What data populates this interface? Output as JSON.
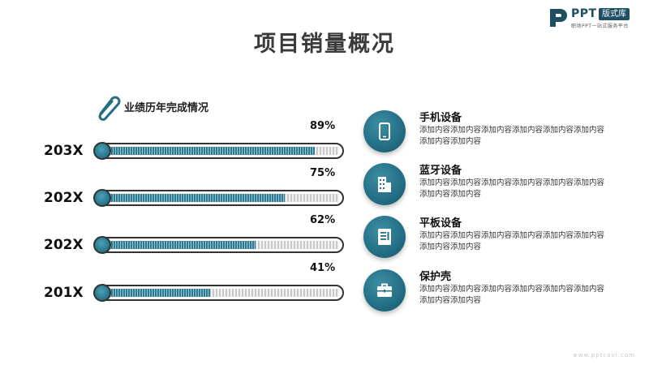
{
  "logo": {
    "brand": "PPT",
    "badge": "版式库",
    "tagline": "职场PPT一站式服务平台"
  },
  "title": "项目销量概况",
  "section_label": "业绩历年完成情况",
  "chart_data": {
    "type": "bar",
    "orientation": "horizontal",
    "categories": [
      "203X",
      "202X",
      "202X",
      "201X"
    ],
    "values": [
      89,
      75,
      62,
      41
    ],
    "value_labels": [
      "89%",
      "75%",
      "62%",
      "41%"
    ],
    "xlim": [
      0,
      100
    ],
    "colors": {
      "fill": "#2b7c92",
      "track": "#c8c8c8"
    }
  },
  "features": [
    {
      "title": "手机设备",
      "desc": "添加内容添加内容添加内容添加内容添加内容添加内容添加内容添加内容",
      "icon": "phone-icon"
    },
    {
      "title": "蓝牙设备",
      "desc": "添加内容添加内容添加内容添加内容添加内容添加内容添加内容添加内容",
      "icon": "building-icon"
    },
    {
      "title": "平板设备",
      "desc": "添加内容添加内容添加内容添加内容添加内容添加内容添加内容添加内容",
      "icon": "tablet-icon"
    },
    {
      "title": "保护壳",
      "desc": "添加内容添加内容添加内容添加内容添加内容添加内容添加内容添加内容",
      "icon": "briefcase-icon"
    }
  ],
  "footer": {
    "url": "www.pptcool.com"
  },
  "accent_color": "#236e84"
}
